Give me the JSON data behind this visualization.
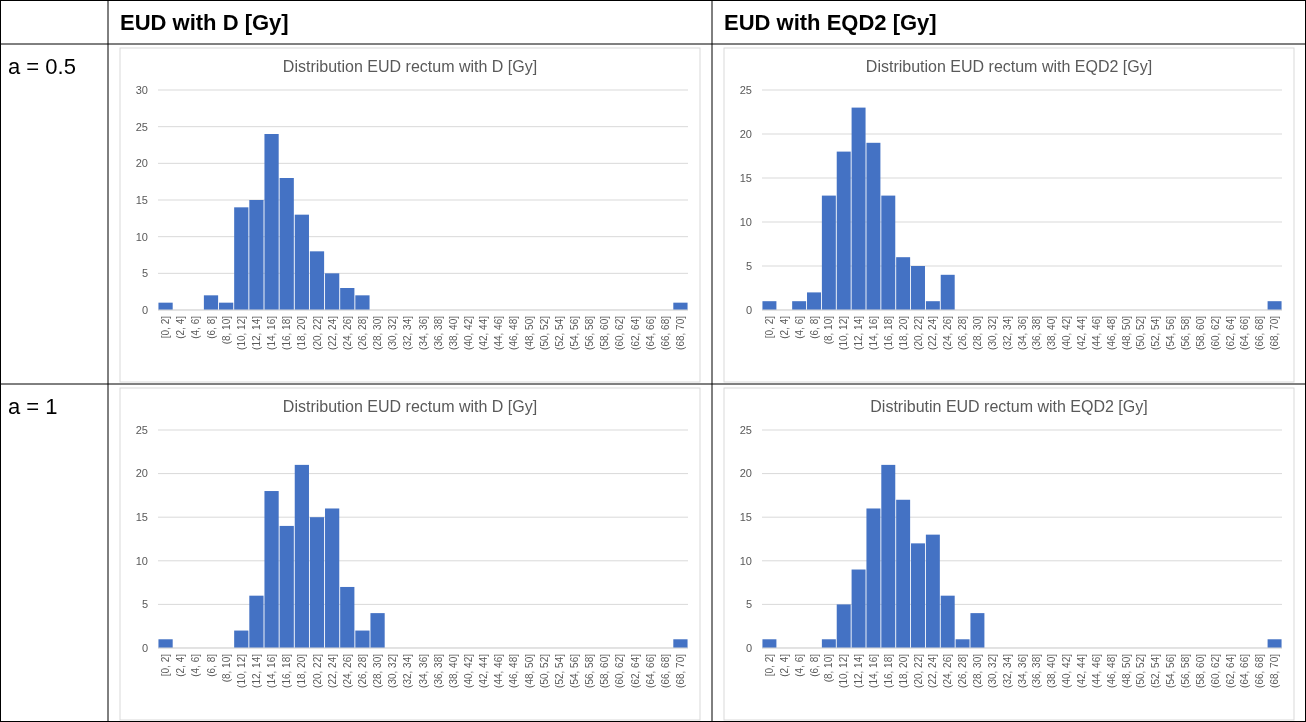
{
  "chart_data": [
    {
      "type": "bar",
      "title": "Distribution EUD rectum with D [Gy]",
      "annotations": [
        "EUD with D [Gy]",
        "a = 0.5"
      ],
      "categories": [
        "[0, 2]",
        "(2, 4]",
        "(4, 6]",
        "(6, 8]",
        "(8, 10]",
        "(10, 12]",
        "(12, 14]",
        "(14, 16]",
        "(16, 18]",
        "(18, 20]",
        "(20, 22]",
        "(22, 24]",
        "(24, 26]",
        "(26, 28]",
        "(28, 30]",
        "(30, 32]",
        "(32, 34]",
        "(34, 36]",
        "(36, 38]",
        "(38, 40]",
        "(40, 42]",
        "(42, 44]",
        "(44, 46]",
        "(46, 48]",
        "(48, 50]",
        "(50, 52]",
        "(52, 54]",
        "(54, 56]",
        "(56, 58]",
        "(58, 60]",
        "(60, 62]",
        "(62, 64]",
        "(64, 66]",
        "(66, 68]",
        "(68, 70]"
      ],
      "values": [
        1,
        0,
        0,
        2,
        1,
        14,
        15,
        24,
        18,
        13,
        8,
        5,
        3,
        2,
        0,
        0,
        0,
        0,
        0,
        0,
        0,
        0,
        0,
        0,
        0,
        0,
        0,
        0,
        0,
        0,
        0,
        0,
        0,
        0,
        1
      ],
      "color": "#4472c4",
      "ylim": [
        0,
        30
      ],
      "yticks": [
        0,
        5,
        10,
        15,
        20,
        25,
        30
      ],
      "grid": "y"
    },
    {
      "type": "bar",
      "title": "Distribution EUD rectum with EQD2 [Gy]",
      "annotations": [
        "EUD with EQD2 [Gy]"
      ],
      "categories": [
        "[0, 2]",
        "(2, 4]",
        "(4, 6]",
        "(6, 8]",
        "(8, 10]",
        "(10, 12]",
        "(12, 14]",
        "(14, 16]",
        "(16, 18]",
        "(18, 20]",
        "(20, 22]",
        "(22, 24]",
        "(24, 26]",
        "(26, 28]",
        "(28, 30]",
        "(30, 32]",
        "(32, 34]",
        "(34, 36]",
        "(36, 38]",
        "(38, 40]",
        "(40, 42]",
        "(42, 44]",
        "(44, 46]",
        "(46, 48]",
        "(48, 50]",
        "(50, 52]",
        "(52, 54]",
        "(54, 56]",
        "(56, 58]",
        "(58, 60]",
        "(60, 62]",
        "(62, 64]",
        "(64, 66]",
        "(66, 68]",
        "(68, 70]"
      ],
      "values": [
        1,
        0,
        1,
        2,
        13,
        18,
        23,
        19,
        13,
        6,
        5,
        1,
        4,
        0,
        0,
        0,
        0,
        0,
        0,
        0,
        0,
        0,
        0,
        0,
        0,
        0,
        0,
        0,
        0,
        0,
        0,
        0,
        0,
        0,
        1
      ],
      "color": "#4472c4",
      "ylim": [
        0,
        25
      ],
      "yticks": [
        0,
        5,
        10,
        15,
        20,
        25
      ],
      "grid": "y"
    },
    {
      "type": "bar",
      "title": "Distribution EUD rectum with D [Gy]",
      "annotations": [
        "a = 1"
      ],
      "categories": [
        "[0, 2]",
        "(2, 4]",
        "(4, 6]",
        "(6, 8]",
        "(8, 10]",
        "(10, 12]",
        "(12, 14]",
        "(14, 16]",
        "(16, 18]",
        "(18, 20]",
        "(20, 22]",
        "(22, 24]",
        "(24, 26]",
        "(26, 28]",
        "(28, 30]",
        "(30, 32]",
        "(32, 34]",
        "(34, 36]",
        "(36, 38]",
        "(38, 40]",
        "(40, 42]",
        "(42, 44]",
        "(44, 46]",
        "(46, 48]",
        "(48, 50]",
        "(50, 52]",
        "(52, 54]",
        "(54, 56]",
        "(56, 58]",
        "(58, 60]",
        "(60, 62]",
        "(62, 64]",
        "(64, 66]",
        "(66, 68]",
        "(68, 70]"
      ],
      "values": [
        1,
        0,
        0,
        0,
        0,
        2,
        6,
        18,
        14,
        21,
        15,
        16,
        7,
        2,
        4,
        0,
        0,
        0,
        0,
        0,
        0,
        0,
        0,
        0,
        0,
        0,
        0,
        0,
        0,
        0,
        0,
        0,
        0,
        0,
        1
      ],
      "color": "#4472c4",
      "ylim": [
        0,
        25
      ],
      "yticks": [
        0,
        5,
        10,
        15,
        20,
        25
      ],
      "grid": "y"
    },
    {
      "type": "bar",
      "title": "Distributin EUD rectum with EQD2 [Gy]",
      "categories": [
        "[0, 2]",
        "(2, 4]",
        "(4, 6]",
        "(6, 8]",
        "(8, 10]",
        "(10, 12]",
        "(12, 14]",
        "(14, 16]",
        "(16, 18]",
        "(18, 20]",
        "(20, 22]",
        "(22, 24]",
        "(24, 26]",
        "(26, 28]",
        "(28, 30]",
        "(30, 32]",
        "(32, 34]",
        "(34, 36]",
        "(36, 38]",
        "(38, 40]",
        "(40, 42]",
        "(42, 44]",
        "(44, 46]",
        "(46, 48]",
        "(48, 50]",
        "(50, 52]",
        "(52, 54]",
        "(54, 56]",
        "(56, 58]",
        "(58, 60]",
        "(60, 62]",
        "(62, 64]",
        "(64, 66]",
        "(66, 68]",
        "(68, 70]"
      ],
      "values": [
        1,
        0,
        0,
        0,
        1,
        5,
        9,
        16,
        21,
        17,
        12,
        13,
        6,
        1,
        4,
        0,
        0,
        0,
        0,
        0,
        0,
        0,
        0,
        0,
        0,
        0,
        0,
        0,
        0,
        0,
        0,
        0,
        0,
        0,
        1
      ],
      "color": "#4472c4",
      "ylim": [
        0,
        25
      ],
      "yticks": [
        0,
        5,
        10,
        15,
        20,
        25
      ],
      "grid": "y"
    }
  ]
}
